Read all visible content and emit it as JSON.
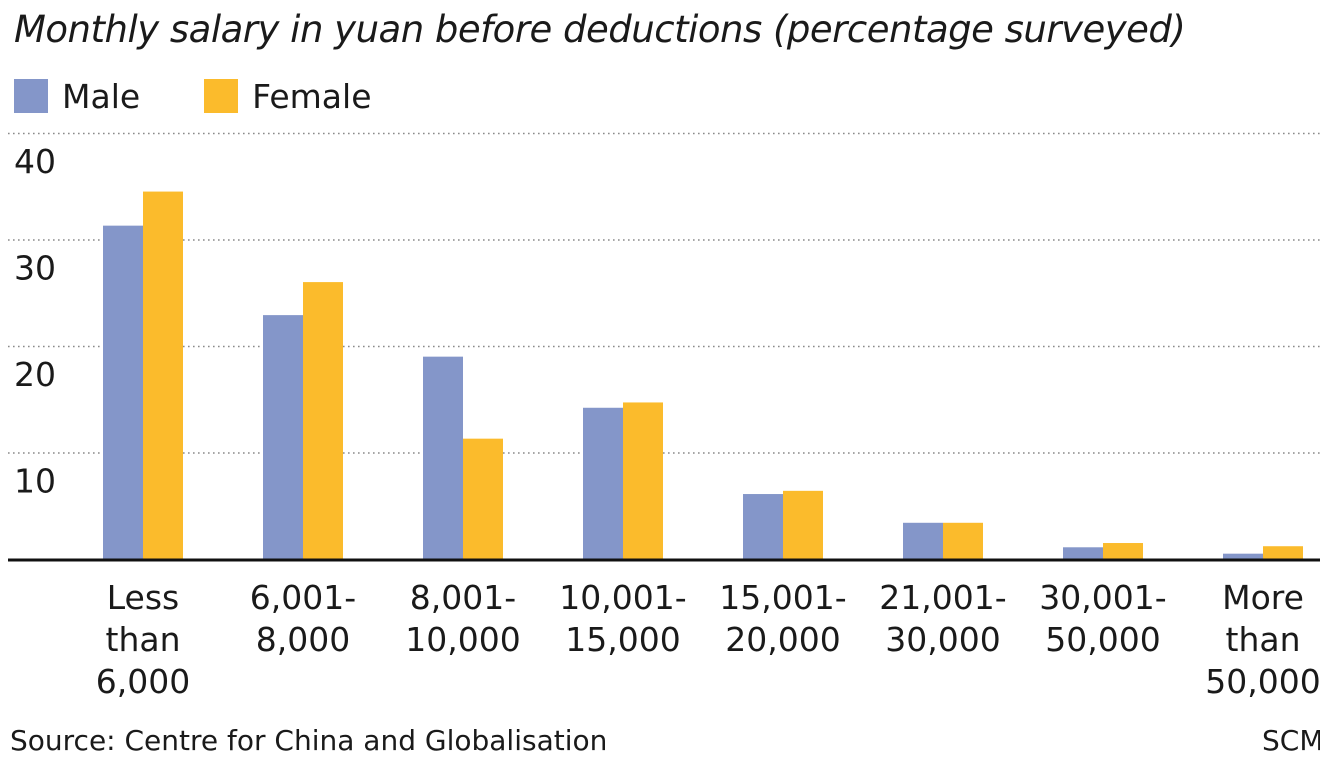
{
  "title": "Monthly salary in yuan before deductions (percentage surveyed)",
  "source": "Source: Centre for China and Globalisation",
  "credit": "SCMP",
  "chart_data": {
    "type": "bar",
    "title": "Monthly salary in yuan before deductions (percentage surveyed)",
    "xlabel": "",
    "ylabel": "",
    "ylim": [
      0,
      40
    ],
    "yticks": [
      10,
      20,
      30,
      40
    ],
    "grid": true,
    "legend_position": "top-left",
    "categories": [
      [
        "Less",
        "than",
        "6,000"
      ],
      [
        "6,001-",
        "8,000"
      ],
      [
        "8,001-",
        "10,000"
      ],
      [
        "10,001-",
        "15,000"
      ],
      [
        "15,001-",
        "20,000"
      ],
      [
        "21,001-",
        "30,000"
      ],
      [
        "30,001-",
        "50,000"
      ],
      [
        "More",
        "than",
        "50,000"
      ]
    ],
    "series": [
      {
        "name": "Male",
        "color": "#8496c9",
        "values": [
          31.3,
          22.9,
          19.0,
          14.2,
          6.1,
          3.4,
          1.1,
          0.5
        ]
      },
      {
        "name": "Female",
        "color": "#fbbb2c",
        "values": [
          34.5,
          26.0,
          11.3,
          14.7,
          6.4,
          3.4,
          1.5,
          1.2
        ]
      }
    ]
  }
}
